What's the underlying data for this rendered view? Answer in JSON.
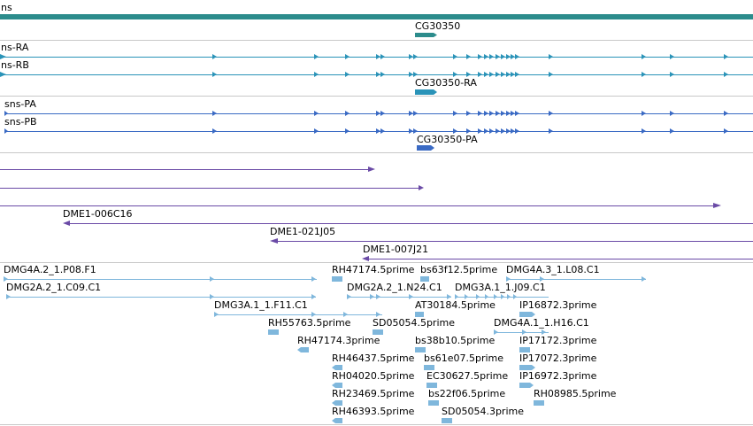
{
  "colors": {
    "gene": "#2c8c8c",
    "mrna": "#2a93b8",
    "protein": "#3a6ac4",
    "clone": "#6a4aa6",
    "est": "#7fb7dc",
    "separator": "#c8c8c8"
  },
  "tracks": {
    "gene": {
      "labels": [
        "ns",
        "CG30350"
      ]
    },
    "transcripts": {
      "labels": [
        "ns-RA",
        "ns-RB",
        "CG30350-RA"
      ]
    },
    "proteins": {
      "labels": [
        "sns-PA",
        "sns-PB",
        "CG30350-PA"
      ]
    },
    "clones": {
      "labels": [
        "DME1-006C16",
        "DME1-021J05",
        "DME1-007J21"
      ]
    },
    "ests": {
      "labels": [
        "DMG4A.2_1.P08.F1",
        "RH47174.5prime",
        "bs63f12.5prime",
        "DMG4A.3_1.L08.C1",
        "DMG2A.2_1.C09.C1",
        "DMG2A.2_1.N24.C1",
        "DMG3A.1_1.J09.C1",
        "DMG3A.1_1.F11.C1",
        "AT30184.5prime",
        "IP16872.3prime",
        "RH55763.5prime",
        "SD05054.5prime",
        "DMG4A.1_1.H16.C1",
        "RH47174.3prime",
        "bs38b10.5prime",
        "IP17172.3prime",
        "RH46437.5prime",
        "bs61e07.5prime",
        "IP17072.3prime",
        "RH04020.5prime",
        "EC30627.5prime",
        "IP16972.3prime",
        "RH23469.5prime",
        "bs22f06.5prime",
        "RH08985.5prime",
        "RH46393.5prime",
        "SD05054.3prime"
      ]
    }
  }
}
